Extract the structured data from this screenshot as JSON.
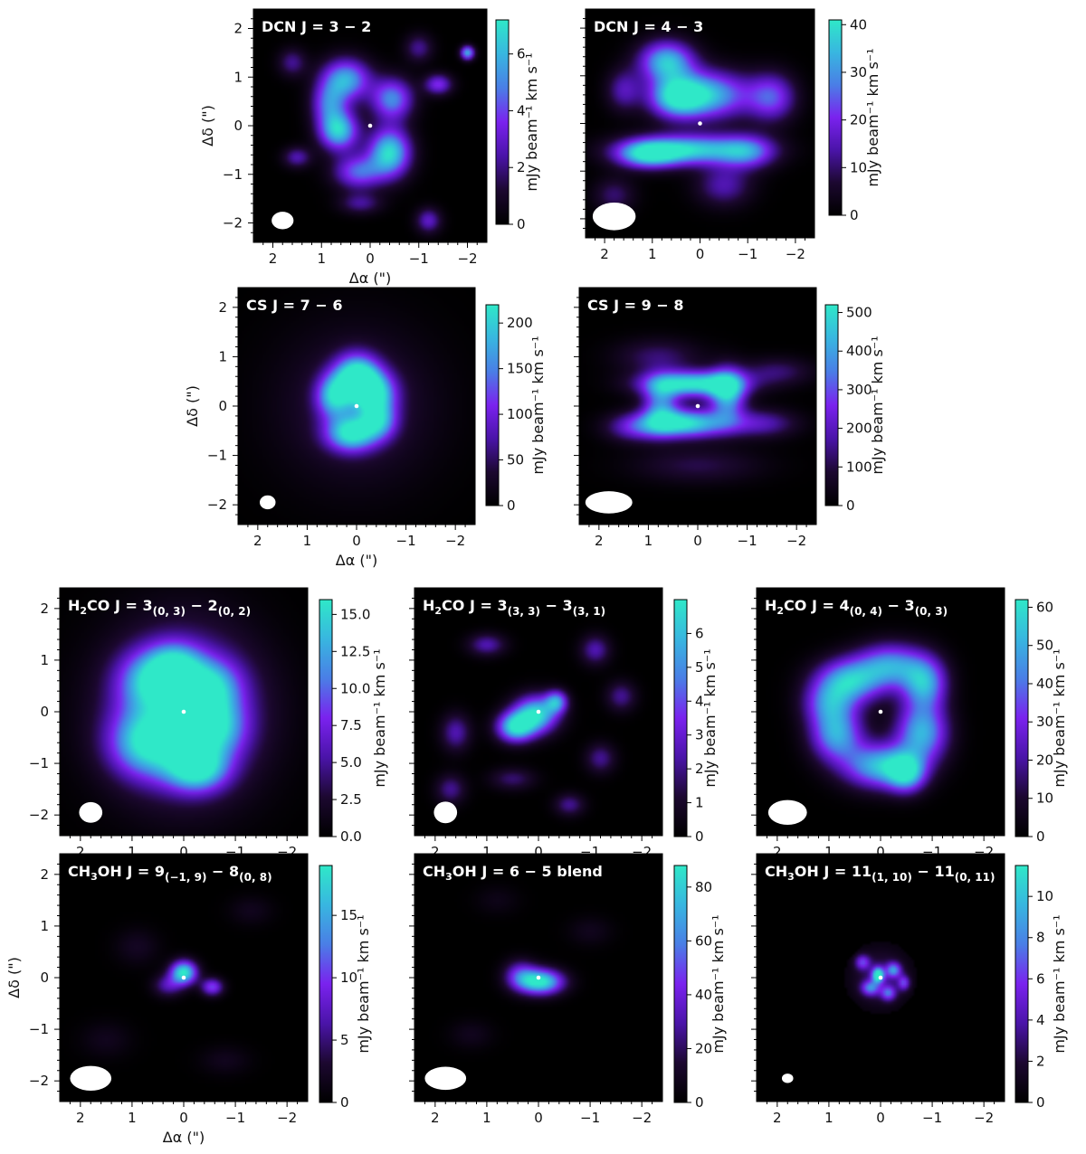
{
  "figure": {
    "axis_labels": {
      "x": "Δα (\")",
      "y": "Δδ (\")"
    },
    "colorbar_label": "mJy beam⁻¹ km s⁻¹",
    "colormap": [
      "#000000",
      "#1c0830",
      "#4a14a8",
      "#7a22ee",
      "#4a7ee6",
      "#38b6e0",
      "#2fe8c8"
    ],
    "annotation_dot_color": "#ffffff",
    "beam_color": "#ffffff"
  },
  "chart_data": [
    {
      "id": "dcn32",
      "type": "heatmap",
      "title": "DCN J = 3 − 2",
      "xlabel": "Δα (\")",
      "ylabel": "Δδ (\")",
      "xlim": [
        2.4,
        -2.4
      ],
      "ylim": [
        -2.4,
        2.4
      ],
      "x_ticks": [
        "2",
        "1",
        "0",
        "−1",
        "−2"
      ],
      "y_ticks": [
        "2",
        "1",
        "0",
        "−1",
        "−2"
      ],
      "colorbar": {
        "min": 0,
        "max": 7.2,
        "ticks": [
          "0",
          "2",
          "4",
          "6"
        ],
        "label": "mJy beam⁻¹ km s⁻¹"
      },
      "morphology": "clumpy ring",
      "peak": 6.8,
      "beam_major": 0.45,
      "beam_minor": 0.36
    },
    {
      "id": "dcn43",
      "type": "heatmap",
      "title": "DCN J = 4 − 3",
      "xlabel": "",
      "ylabel": "",
      "xlim": [
        2.4,
        -2.4
      ],
      "ylim": [
        -2.4,
        2.4
      ],
      "x_ticks": [
        "2",
        "1",
        "0",
        "−1",
        "−2"
      ],
      "y_ticks": [],
      "colorbar": {
        "min": 0,
        "max": 41,
        "ticks": [
          "0",
          "10",
          "20",
          "30",
          "40"
        ],
        "label": "mJy beam⁻¹ km s⁻¹"
      },
      "morphology": "two arcs north and south",
      "peak": 38,
      "beam_major": 0.9,
      "beam_minor": 0.58
    },
    {
      "id": "cs76",
      "type": "heatmap",
      "title": "CS J = 7 − 6",
      "xlabel": "Δα (\")",
      "ylabel": "Δδ (\")",
      "xlim": [
        2.4,
        -2.4
      ],
      "ylim": [
        -2.4,
        2.4
      ],
      "x_ticks": [
        "2",
        "1",
        "0",
        "−1",
        "−2"
      ],
      "y_ticks": [
        "2",
        "1",
        "0",
        "−1",
        "−2"
      ],
      "colorbar": {
        "min": 0,
        "max": 220,
        "ticks": [
          "0",
          "50",
          "100",
          "150",
          "200"
        ],
        "label": "mJy beam⁻¹ km s⁻¹"
      },
      "morphology": "ring with diffuse halo",
      "peak": 210,
      "beam_major": 0.32,
      "beam_minor": 0.28
    },
    {
      "id": "cs98",
      "type": "heatmap",
      "title": "CS J = 9 − 8",
      "xlabel": "",
      "ylabel": "",
      "xlim": [
        2.4,
        -2.4
      ],
      "ylim": [
        -2.4,
        2.4
      ],
      "x_ticks": [
        "2",
        "1",
        "0",
        "−1",
        "−2"
      ],
      "y_ticks": [],
      "colorbar": {
        "min": 0,
        "max": 520,
        "ticks": [
          "0",
          "100",
          "200",
          "300",
          "400",
          "500"
        ],
        "label": "mJy beam⁻¹ km s⁻¹"
      },
      "morphology": "elongated ring",
      "peak": 500,
      "beam_major": 0.95,
      "beam_minor": 0.45
    },
    {
      "id": "h2co303",
      "type": "heatmap",
      "title": "H₂CO J = 3(0, 3) − 2(0, 2)",
      "title_parts": {
        "species": "H",
        "species_sub": "2",
        "species_rest": "CO J = 3",
        "upper_sub": "(0, 3)",
        "mid": " − 2",
        "lower_sub": "(0, 2)"
      },
      "xlabel": "",
      "ylabel": "",
      "xlim": [
        2.4,
        -2.4
      ],
      "ylim": [
        -2.4,
        2.4
      ],
      "x_ticks": [
        "2",
        "1",
        "0",
        "−1",
        "−2"
      ],
      "y_ticks": [
        "2",
        "1",
        "0",
        "−1",
        "−2"
      ],
      "colorbar": {
        "min": 0,
        "max": 16,
        "ticks": [
          "0.0",
          "2.5",
          "5.0",
          "7.5",
          "10.0",
          "12.5",
          "15.0"
        ],
        "label": "mJy beam⁻¹ km s⁻¹"
      },
      "morphology": "filled disk",
      "peak": 15.5,
      "beam_major": 0.45,
      "beam_minor": 0.4
    },
    {
      "id": "h2co333",
      "type": "heatmap",
      "title": "H₂CO J = 3(3, 3) − 3(3, 1)",
      "title_parts": {
        "species": "H",
        "species_sub": "2",
        "species_rest": "CO J = 3",
        "upper_sub": "(3, 3)",
        "mid": " − 3",
        "lower_sub": "(3, 1)"
      },
      "xlabel": "",
      "ylabel": "",
      "xlim": [
        2.4,
        -2.4
      ],
      "ylim": [
        -2.4,
        2.4
      ],
      "x_ticks": [
        "2",
        "1",
        "0",
        "−1",
        "−2"
      ],
      "y_ticks": [],
      "colorbar": {
        "min": 0,
        "max": 7,
        "ticks": [
          "0",
          "1",
          "2",
          "3",
          "4",
          "5",
          "6"
        ],
        "label": "mJy beam⁻¹ km s⁻¹"
      },
      "morphology": "compact central bar",
      "peak": 6.6,
      "beam_major": 0.45,
      "beam_minor": 0.42
    },
    {
      "id": "h2co404",
      "type": "heatmap",
      "title": "H₂CO J = 4(0, 4) − 3(0, 3)",
      "title_parts": {
        "species": "H",
        "species_sub": "2",
        "species_rest": "CO J = 4",
        "upper_sub": "(0, 4)",
        "mid": " − 3",
        "lower_sub": "(0, 3)"
      },
      "xlabel": "",
      "ylabel": "",
      "xlim": [
        2.4,
        -2.4
      ],
      "ylim": [
        -2.4,
        2.4
      ],
      "x_ticks": [
        "2",
        "1",
        "0",
        "−1",
        "−2"
      ],
      "y_ticks": [],
      "colorbar": {
        "min": 0,
        "max": 62,
        "ticks": [
          "0",
          "10",
          "20",
          "30",
          "40",
          "50",
          "60"
        ],
        "label": "mJy beam⁻¹ km s⁻¹"
      },
      "morphology": "ring",
      "peak": 60,
      "beam_major": 0.75,
      "beam_minor": 0.48
    },
    {
      "id": "ch3oh9",
      "type": "heatmap",
      "title": "CH₃OH J = 9(−1, 9) − 8(0, 8)",
      "title_parts": {
        "species": "CH",
        "species_sub": "3",
        "species_rest": "OH  J = 9",
        "upper_sub": "(−1, 9)",
        "mid": " − 8",
        "lower_sub": "(0, 8)"
      },
      "xlabel": "Δα (\")",
      "ylabel": "Δδ (\")",
      "xlim": [
        2.4,
        -2.4
      ],
      "ylim": [
        -2.4,
        2.4
      ],
      "x_ticks": [
        "2",
        "1",
        "0",
        "−1",
        "−2"
      ],
      "y_ticks": [
        "2",
        "1",
        "0",
        "−1",
        "−2"
      ],
      "colorbar": {
        "min": 0,
        "max": 19,
        "ticks": [
          "0",
          "5",
          "10",
          "15"
        ],
        "label": "mJy beam⁻¹ km s⁻¹"
      },
      "morphology": "compact core",
      "peak": 18,
      "beam_major": 0.8,
      "beam_minor": 0.48
    },
    {
      "id": "ch3oh65",
      "type": "heatmap",
      "title": "CH₃OH J = 6 − 5 blend",
      "title_parts": {
        "species": "CH",
        "species_sub": "3",
        "species_rest": "OH J = 6 − 5 blend",
        "upper_sub": "",
        "mid": "",
        "lower_sub": ""
      },
      "xlabel": "",
      "ylabel": "",
      "xlim": [
        2.4,
        -2.4
      ],
      "ylim": [
        -2.4,
        2.4
      ],
      "x_ticks": [
        "2",
        "1",
        "0",
        "−1",
        "−2"
      ],
      "y_ticks": [],
      "colorbar": {
        "min": 0,
        "max": 88,
        "ticks": [
          "0",
          "20",
          "40",
          "60",
          "80"
        ],
        "label": "mJy beam⁻¹ km s⁻¹"
      },
      "morphology": "compact core",
      "peak": 86,
      "beam_major": 0.8,
      "beam_minor": 0.45
    },
    {
      "id": "ch3oh11",
      "type": "heatmap",
      "title": "CH₃OH J = 11(1, 10) − 11(0, 11)",
      "title_parts": {
        "species": "CH",
        "species_sub": "3",
        "species_rest": "OH J = 11",
        "upper_sub": "(1, 10)",
        "mid": " − 11",
        "lower_sub": "(0, 11)"
      },
      "xlabel": "",
      "ylabel": "",
      "xlim": [
        2.4,
        -2.4
      ],
      "ylim": [
        -2.4,
        2.4
      ],
      "x_ticks": [
        "2",
        "1",
        "0",
        "−1",
        "−2"
      ],
      "y_ticks": [],
      "colorbar": {
        "min": 0,
        "max": 11.5,
        "ticks": [
          "0",
          "2",
          "4",
          "6",
          "8",
          "10"
        ],
        "label": "mJy beam⁻¹ km s⁻¹"
      },
      "morphology": "small masked disk",
      "peak": 11,
      "beam_major": 0.22,
      "beam_minor": 0.18
    }
  ]
}
